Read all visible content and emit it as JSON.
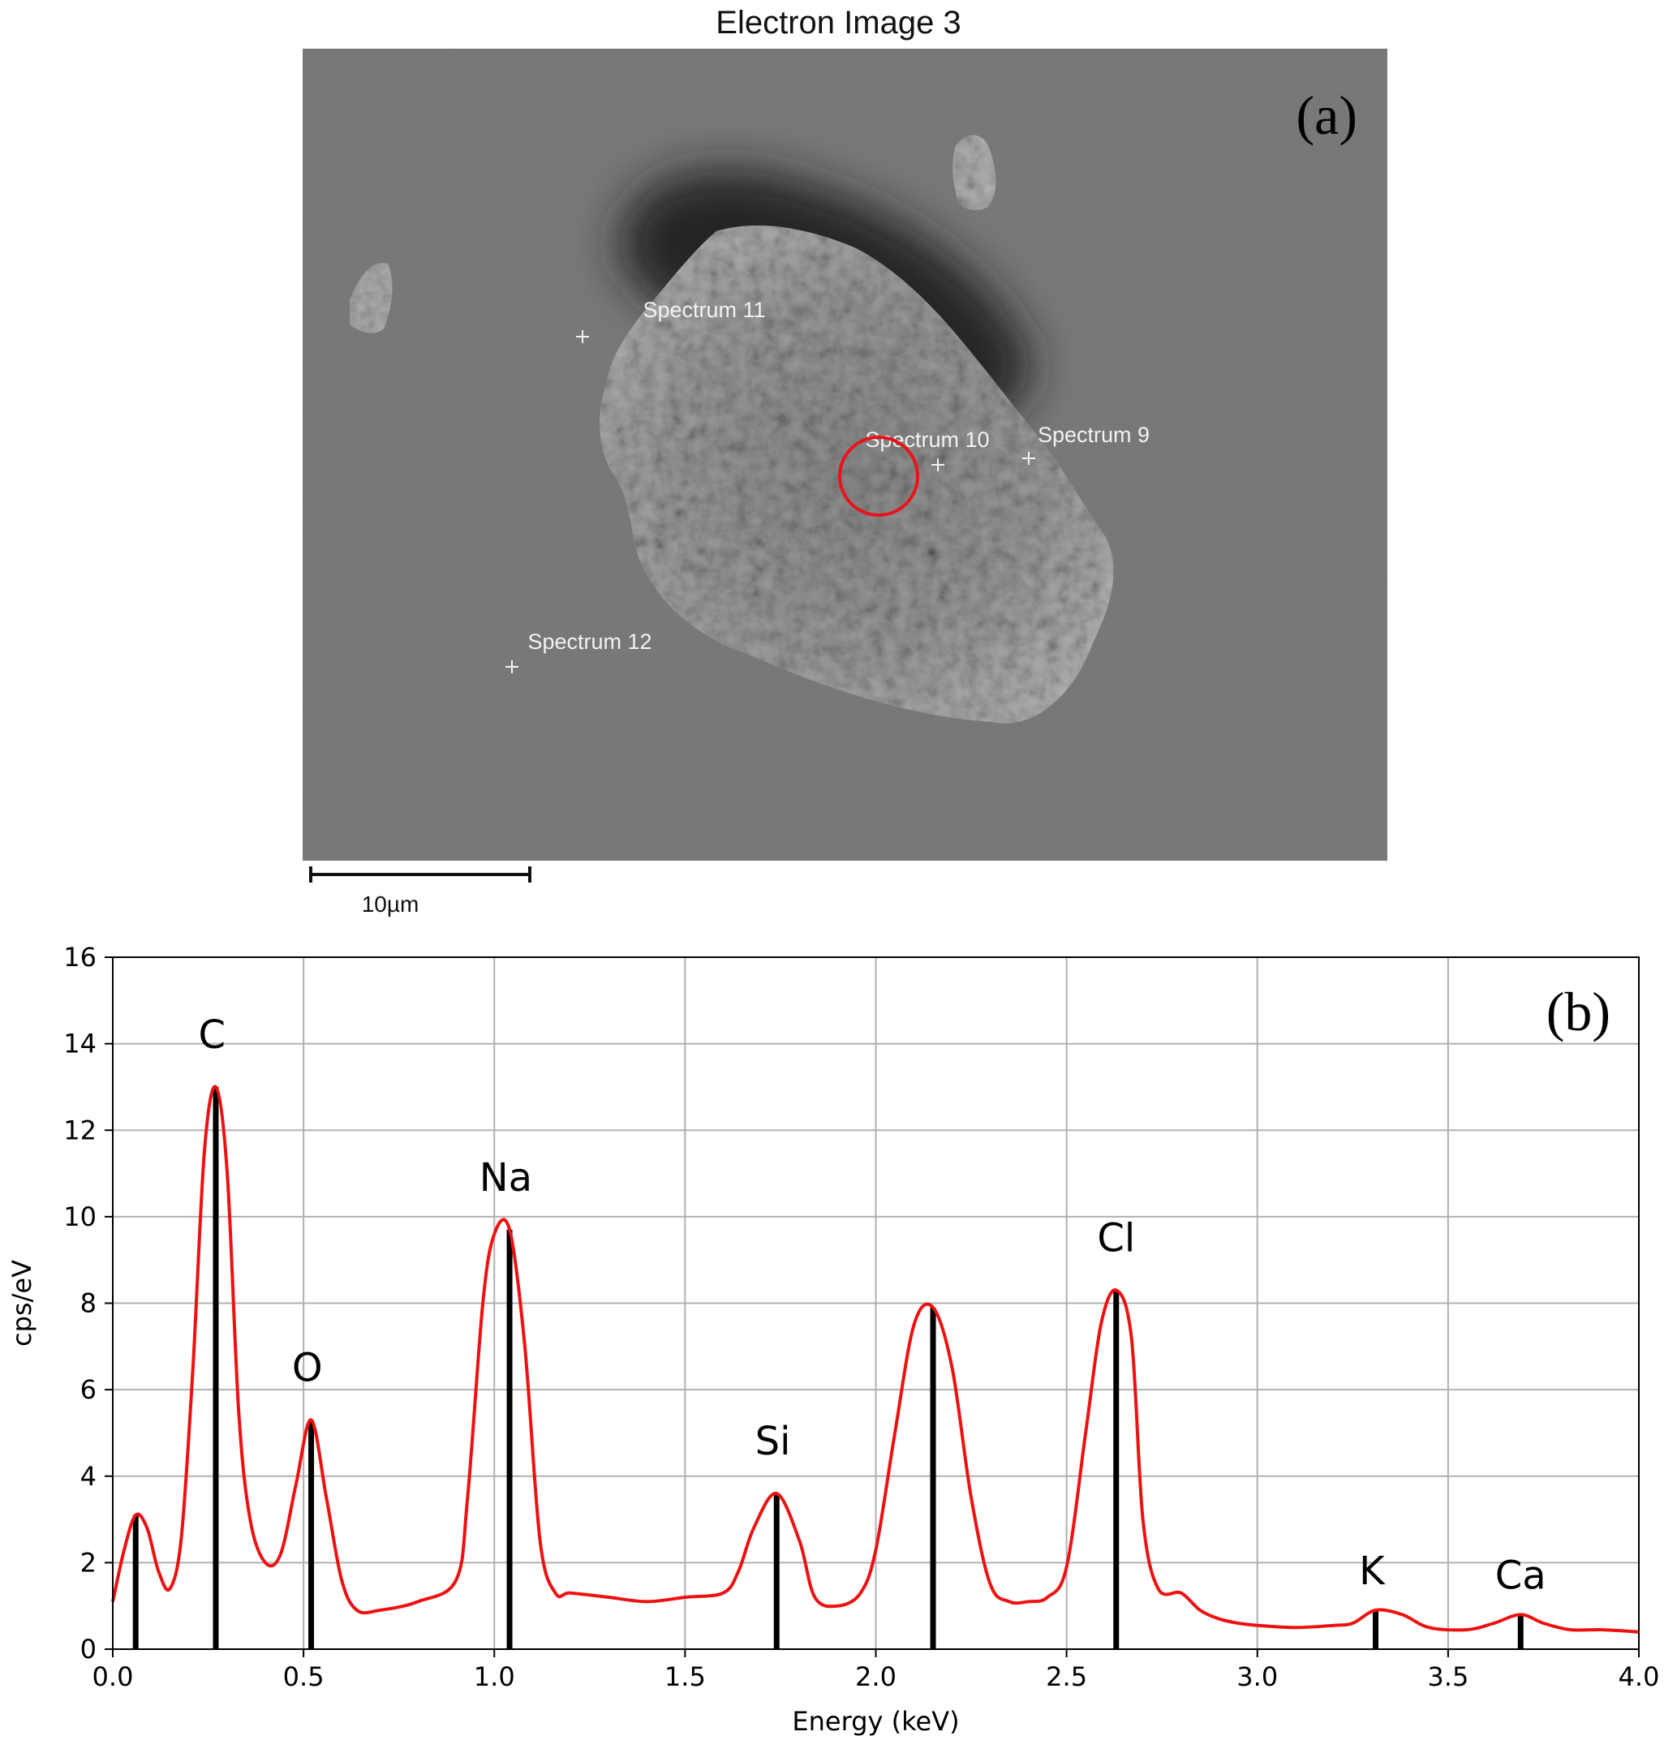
{
  "sem": {
    "title": "Electron Image 3",
    "panel_label": "(a)",
    "scale_bar_label": "10µm",
    "spectrum_points": [
      {
        "label": "Spectrum 11"
      },
      {
        "label": "Spectrum 10"
      },
      {
        "label": "Spectrum 9"
      },
      {
        "label": "Spectrum 12"
      }
    ],
    "highlight_color": "#e8141c"
  },
  "chart_data": {
    "type": "line",
    "panel_label": "(b)",
    "xlabel": "Energy (keV)",
    "ylabel": "cps/eV",
    "xlim": [
      0.0,
      4.0
    ],
    "ylim": [
      0,
      16
    ],
    "xticks": [
      "0.0",
      "0.5",
      "1.0",
      "1.5",
      "2.0",
      "2.5",
      "3.0",
      "3.5",
      "4.0"
    ],
    "yticks": [
      "0",
      "2",
      "4",
      "6",
      "8",
      "10",
      "12",
      "14",
      "16"
    ],
    "grid": true,
    "line_color": "#ee1111",
    "spectrum": {
      "x": [
        0.0,
        0.03,
        0.06,
        0.09,
        0.12,
        0.15,
        0.18,
        0.21,
        0.24,
        0.27,
        0.3,
        0.33,
        0.36,
        0.4,
        0.44,
        0.48,
        0.52,
        0.56,
        0.6,
        0.64,
        0.7,
        0.8,
        0.9,
        0.93,
        0.97,
        1.0,
        1.04,
        1.08,
        1.12,
        1.16,
        1.2,
        1.3,
        1.4,
        1.5,
        1.6,
        1.64,
        1.68,
        1.74,
        1.8,
        1.84,
        1.9,
        1.96,
        2.0,
        2.05,
        2.1,
        2.15,
        2.2,
        2.25,
        2.3,
        2.35,
        2.4,
        2.45,
        2.5,
        2.55,
        2.59,
        2.63,
        2.67,
        2.7,
        2.74,
        2.8,
        2.85,
        2.9,
        2.95,
        3.0,
        3.1,
        3.2,
        3.25,
        3.31,
        3.38,
        3.45,
        3.55,
        3.62,
        3.69,
        3.75,
        3.82,
        3.9,
        4.0
      ],
      "y": [
        1.1,
        2.3,
        3.1,
        2.8,
        1.8,
        1.4,
        2.6,
        6.5,
        11.5,
        13.0,
        11.0,
        5.5,
        3.0,
        2.0,
        2.2,
        3.8,
        5.3,
        3.5,
        1.6,
        0.9,
        0.9,
        1.1,
        1.6,
        3.5,
        8.0,
        9.6,
        9.7,
        7.0,
        2.5,
        1.3,
        1.3,
        1.2,
        1.1,
        1.2,
        1.3,
        1.8,
        2.8,
        3.6,
        2.5,
        1.2,
        1.0,
        1.3,
        2.3,
        5.0,
        7.5,
        7.9,
        6.5,
        3.5,
        1.5,
        1.1,
        1.1,
        1.2,
        1.9,
        5.0,
        7.5,
        8.3,
        7.2,
        3.0,
        1.4,
        1.3,
        0.9,
        0.7,
        0.6,
        0.55,
        0.5,
        0.55,
        0.6,
        0.9,
        0.8,
        0.5,
        0.45,
        0.6,
        0.8,
        0.6,
        0.45,
        0.45,
        0.4
      ]
    },
    "markers": [
      {
        "energy": 0.06,
        "height": 3.1
      },
      {
        "energy": 0.27,
        "height": 13.0
      },
      {
        "energy": 0.52,
        "height": 5.3
      },
      {
        "energy": 1.04,
        "height": 9.7
      },
      {
        "energy": 1.74,
        "height": 3.6
      },
      {
        "energy": 2.15,
        "height": 7.9
      },
      {
        "energy": 2.63,
        "height": 8.3
      },
      {
        "energy": 3.31,
        "height": 0.9
      },
      {
        "energy": 3.69,
        "height": 0.8
      }
    ],
    "peak_labels": [
      {
        "text": "C",
        "energy": 0.26,
        "y": 13.9
      },
      {
        "text": "O",
        "energy": 0.51,
        "y": 6.2
      },
      {
        "text": "Na",
        "energy": 1.03,
        "y": 10.6
      },
      {
        "text": "Si",
        "energy": 1.73,
        "y": 4.5
      },
      {
        "text": "Cl",
        "energy": 2.63,
        "y": 9.2
      },
      {
        "text": "K",
        "energy": 3.3,
        "y": 1.5
      },
      {
        "text": "Ca",
        "energy": 3.69,
        "y": 1.4
      }
    ]
  }
}
